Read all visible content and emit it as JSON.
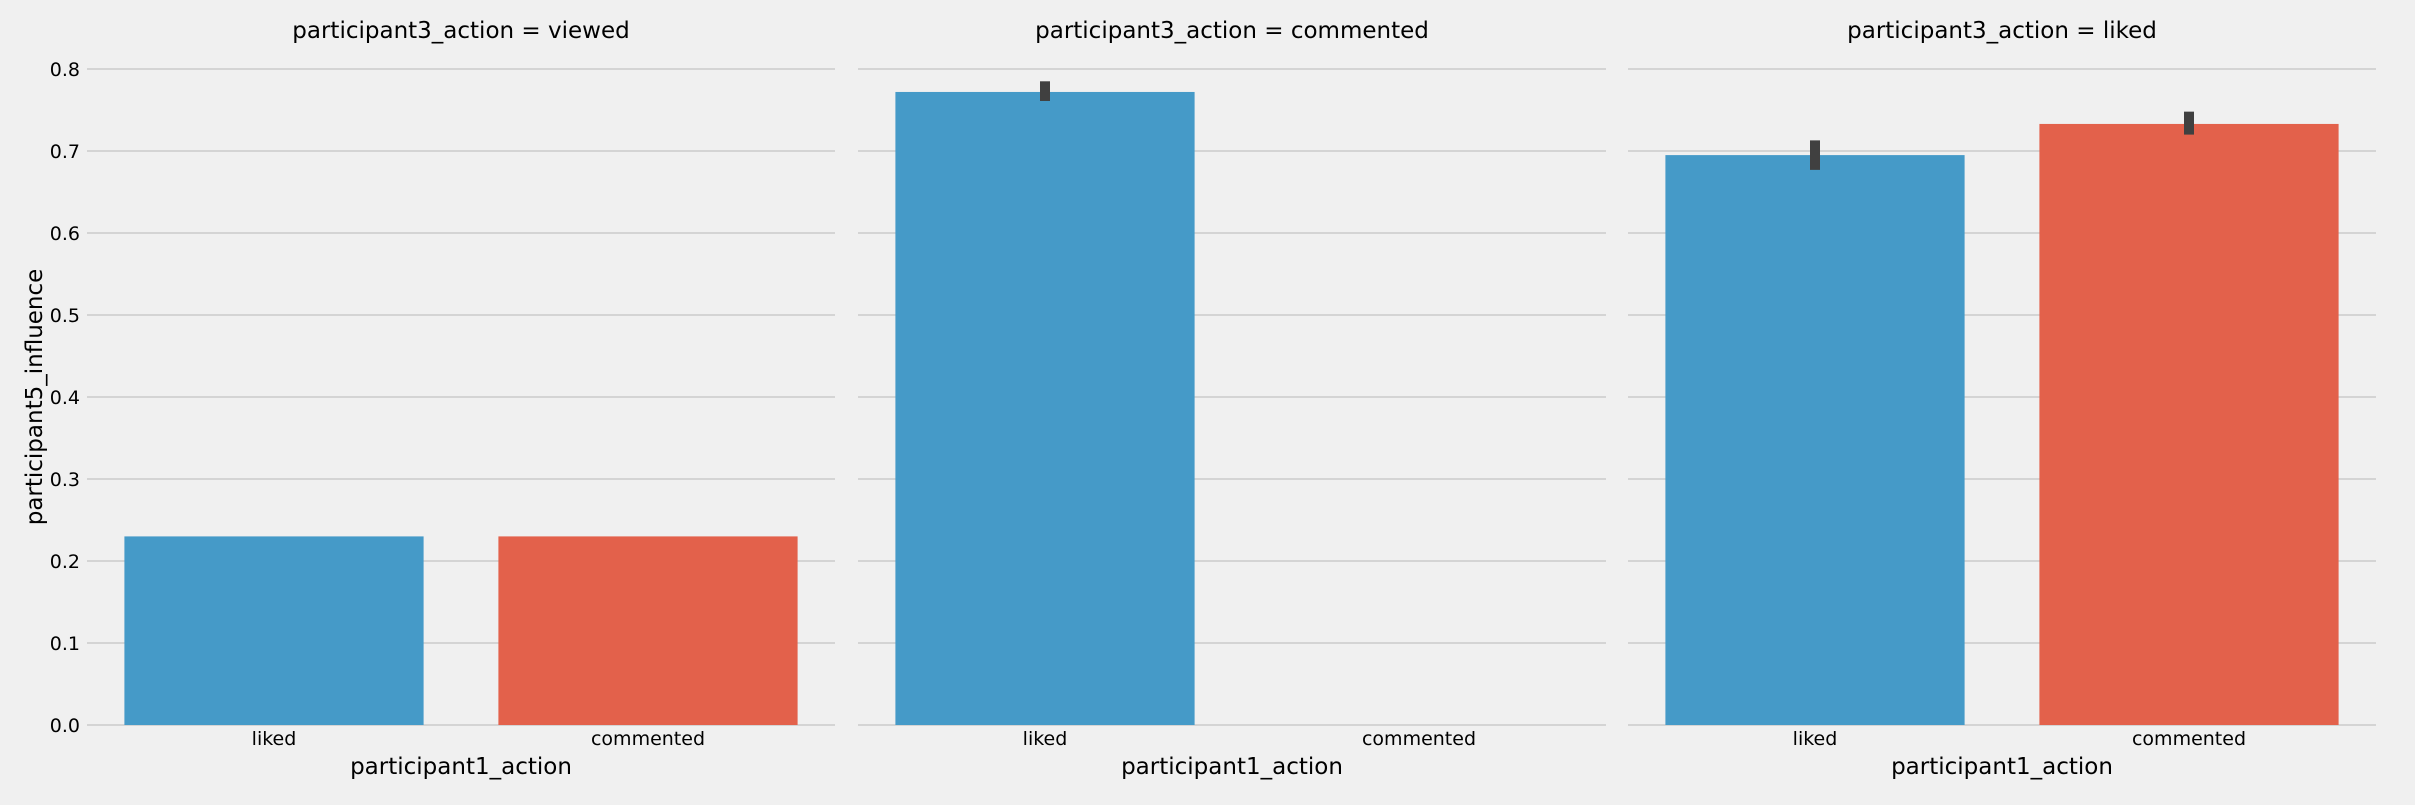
{
  "chart_data": {
    "type": "bar",
    "layout": "faceted",
    "facet_variable": "participant3_action",
    "ylabel": "participant5_influence",
    "ylim": [
      0,
      0.8
    ],
    "yticks": [
      "0.0",
      "0.1",
      "0.2",
      "0.3",
      "0.4",
      "0.5",
      "0.6",
      "0.7",
      "0.8"
    ],
    "grid": true,
    "colors": {
      "liked": "#459ac8",
      "commented": "#e3614b",
      "errorbar": "#404040",
      "grid": "#cbcbcb",
      "background": "#f0f0f0"
    },
    "panels": [
      {
        "title": "participant3_action = viewed",
        "xlabel": "participant1_action",
        "categories": [
          "liked",
          "commented"
        ],
        "values": [
          0.23,
          0.23
        ],
        "error": [
          null,
          null
        ]
      },
      {
        "title": "participant3_action = commented",
        "xlabel": "participant1_action",
        "categories": [
          "liked",
          "commented"
        ],
        "values": [
          0.772,
          null
        ],
        "error": [
          [
            0.761,
            0.785
          ],
          null
        ]
      },
      {
        "title": "participant3_action = liked",
        "xlabel": "participant1_action",
        "categories": [
          "liked",
          "commented"
        ],
        "values": [
          0.695,
          0.733
        ],
        "error": [
          [
            0.677,
            0.713
          ],
          [
            0.72,
            0.748
          ]
        ]
      }
    ]
  }
}
